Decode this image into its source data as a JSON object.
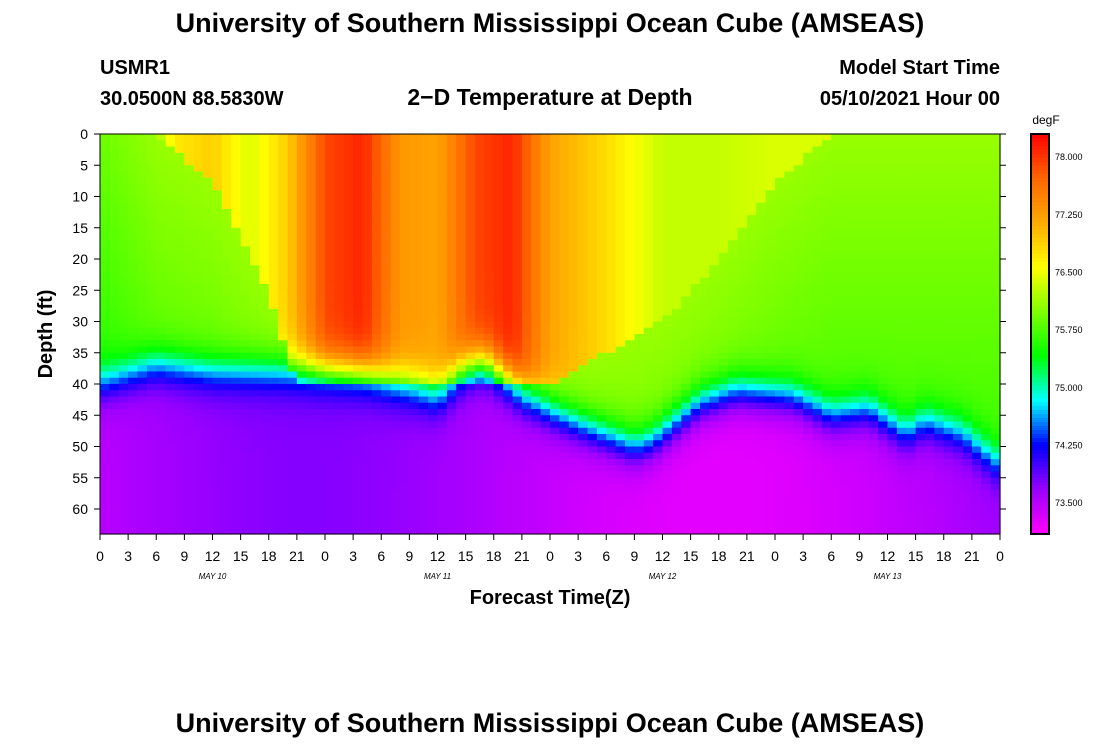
{
  "page": {
    "title": "University of Southern Mississippi Ocean Cube (AMSEAS)",
    "footer_title": "University of Southern Mississippi Ocean Cube (AMSEAS)",
    "station_id": "USMR1",
    "location": "30.0500N  88.5830W",
    "plot_title": "2−D Temperature at Depth",
    "model_start_label": "Model Start Time",
    "model_start_value": "05/10/2021 Hour 00"
  },
  "chart_data": {
    "type": "heatmap",
    "title": "2−D Temperature at Depth",
    "xlabel": "Forecast Time(Z)",
    "ylabel": "Depth (ft)",
    "x_hours_range": [
      0,
      96
    ],
    "y_range": [
      0,
      64
    ],
    "y_ticks": [
      0,
      5,
      10,
      15,
      20,
      25,
      30,
      35,
      40,
      45,
      50,
      55,
      60
    ],
    "x_tick_labels": [
      "0",
      "3",
      "6",
      "9",
      "12",
      "15",
      "18",
      "21",
      "0",
      "3",
      "6",
      "9",
      "12",
      "15",
      "18",
      "21",
      "0",
      "3",
      "6",
      "9",
      "12",
      "15",
      "18",
      "21",
      "0",
      "3",
      "6",
      "9",
      "12",
      "15",
      "18",
      "21",
      "0"
    ],
    "date_labels": [
      {
        "hour": 12,
        "text": "MAY 10"
      },
      {
        "hour": 36,
        "text": "MAY 11"
      },
      {
        "hour": 60,
        "text": "MAY 12"
      },
      {
        "hour": 84,
        "text": "MAY 13"
      }
    ],
    "colorbar": {
      "unit": "degF",
      "min": 73.1,
      "max": 78.3,
      "tick_labels": [
        "78.000",
        "77.250",
        "76.500",
        "75.750",
        "75.000",
        "74.250",
        "73.500"
      ],
      "tick_values": [
        78.0,
        77.25,
        76.5,
        75.75,
        75.0,
        74.25,
        73.5
      ]
    },
    "thermocline_depth_ft": [
      {
        "hour": 0,
        "depth": 40
      },
      {
        "hour": 6,
        "depth": 37
      },
      {
        "hour": 12,
        "depth": 38
      },
      {
        "hour": 20,
        "depth": 38
      },
      {
        "hour": 28,
        "depth": 39
      },
      {
        "hour": 34,
        "depth": 41
      },
      {
        "hour": 36,
        "depth": 42
      },
      {
        "hour": 39,
        "depth": 38
      },
      {
        "hour": 41,
        "depth": 37
      },
      {
        "hour": 45,
        "depth": 42
      },
      {
        "hour": 49,
        "depth": 45
      },
      {
        "hour": 52,
        "depth": 47
      },
      {
        "hour": 57,
        "depth": 50
      },
      {
        "hour": 59,
        "depth": 49
      },
      {
        "hour": 64,
        "depth": 43
      },
      {
        "hour": 68,
        "depth": 41
      },
      {
        "hour": 74,
        "depth": 42
      },
      {
        "hour": 78,
        "depth": 45
      },
      {
        "hour": 82,
        "depth": 44
      },
      {
        "hour": 86,
        "depth": 48
      },
      {
        "hour": 88,
        "depth": 46
      },
      {
        "hour": 92,
        "depth": 48
      },
      {
        "hour": 96,
        "depth": 53
      }
    ],
    "surface_temp_degF": [
      {
        "hour": 0,
        "temp": 75.9
      },
      {
        "hour": 6,
        "temp": 76.1
      },
      {
        "hour": 8,
        "temp": 76.7
      },
      {
        "hour": 12,
        "temp": 76.9
      },
      {
        "hour": 16,
        "temp": 76.4
      },
      {
        "hour": 20,
        "temp": 76.9
      },
      {
        "hour": 24,
        "temp": 77.9
      },
      {
        "hour": 28,
        "temp": 78.1
      },
      {
        "hour": 32,
        "temp": 77.3
      },
      {
        "hour": 36,
        "temp": 77.2
      },
      {
        "hour": 40,
        "temp": 77.9
      },
      {
        "hour": 44,
        "temp": 78.1
      },
      {
        "hour": 48,
        "temp": 77.2
      },
      {
        "hour": 54,
        "temp": 76.8
      },
      {
        "hour": 60,
        "temp": 76.3
      },
      {
        "hour": 66,
        "temp": 76.3
      },
      {
        "hour": 72,
        "temp": 76.4
      },
      {
        "hour": 78,
        "temp": 76.4
      },
      {
        "hour": 84,
        "temp": 76.4
      },
      {
        "hour": 90,
        "temp": 76.2
      },
      {
        "hour": 96,
        "temp": 76.3
      }
    ],
    "warm_front_depth_ft": [
      {
        "hour": 0,
        "depth": 0
      },
      {
        "hour": 6,
        "depth": 0
      },
      {
        "hour": 12,
        "depth": 8
      },
      {
        "hour": 18,
        "depth": 25
      },
      {
        "hour": 21,
        "depth": 40
      },
      {
        "hour": 24,
        "depth": 40
      },
      {
        "hour": 30,
        "depth": 40
      },
      {
        "hour": 36,
        "depth": 40
      },
      {
        "hour": 42,
        "depth": 40
      },
      {
        "hour": 48,
        "depth": 40
      },
      {
        "hour": 54,
        "depth": 35
      },
      {
        "hour": 60,
        "depth": 30
      },
      {
        "hour": 66,
        "depth": 20
      },
      {
        "hour": 72,
        "depth": 8
      },
      {
        "hour": 78,
        "depth": 0
      },
      {
        "hour": 96,
        "depth": 0
      }
    ],
    "deep_temp_degF": 73.5
  },
  "colors": {
    "scale": [
      "#ff00ff",
      "#9900ff",
      "#0000ff",
      "#00ffff",
      "#00ff00",
      "#80ff00",
      "#ffff00",
      "#ffaa00",
      "#ff6600",
      "#ff0000"
    ]
  }
}
